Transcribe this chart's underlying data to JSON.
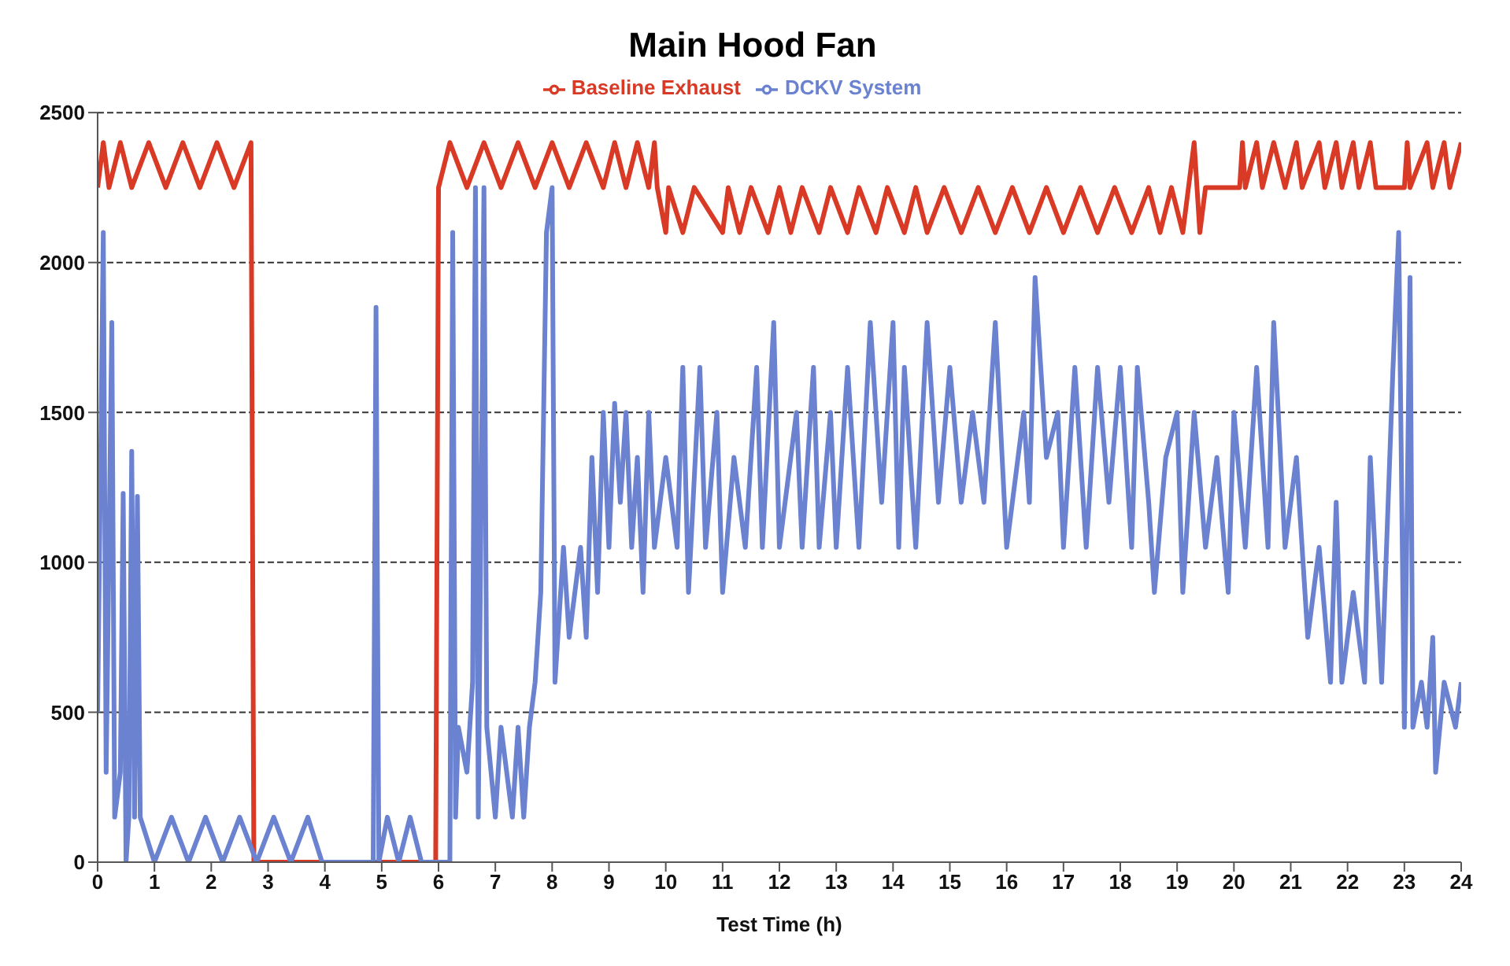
{
  "chart_data": {
    "type": "line",
    "title": "Main Hood Fan",
    "xlabel": "Test Time (h)",
    "xlim": [
      0,
      24
    ],
    "xticks": [
      0,
      1,
      2,
      3,
      4,
      5,
      6,
      7,
      8,
      9,
      10,
      11,
      12,
      13,
      14,
      15,
      16,
      17,
      18,
      19,
      20,
      21,
      22,
      23,
      24
    ],
    "ylim": [
      0,
      2500
    ],
    "yticks": [
      0,
      500,
      1000,
      1500,
      2000,
      2500
    ],
    "grid": "y",
    "legend": "top",
    "marker": "none",
    "line_style": "solid",
    "series": [
      {
        "name": "Baseline Exhaust",
        "color": "#d93a26",
        "x": [
          0,
          0.1,
          0.2,
          0.4,
          0.6,
          0.9,
          1.2,
          1.5,
          1.8,
          2.1,
          2.4,
          2.7,
          2.75,
          5.95,
          6.0,
          6.2,
          6.5,
          6.8,
          7.1,
          7.4,
          7.7,
          8.0,
          8.3,
          8.6,
          8.9,
          9.1,
          9.3,
          9.5,
          9.7,
          9.8,
          9.85,
          10.0,
          10.05,
          10.3,
          10.5,
          11.0,
          11.1,
          11.3,
          11.5,
          11.8,
          12.0,
          12.2,
          12.4,
          12.7,
          12.9,
          13.2,
          13.4,
          13.7,
          13.9,
          14.2,
          14.4,
          14.6,
          14.9,
          15.2,
          15.5,
          15.8,
          16.1,
          16.4,
          16.7,
          17.0,
          17.3,
          17.6,
          17.9,
          18.2,
          18.5,
          18.7,
          18.9,
          19.1,
          19.2,
          19.3,
          19.35,
          19.4,
          19.5,
          20.1,
          20.15,
          20.2,
          20.4,
          20.5,
          20.7,
          20.9,
          21.1,
          21.2,
          21.5,
          21.6,
          21.8,
          21.9,
          22.1,
          22.2,
          22.4,
          22.5,
          23.0,
          23.05,
          23.1,
          23.4,
          23.5,
          23.7,
          23.8,
          24
        ],
        "values": [
          2250,
          2400,
          2250,
          2400,
          2250,
          2400,
          2250,
          2400,
          2250,
          2400,
          2250,
          2400,
          0,
          0,
          2250,
          2400,
          2250,
          2400,
          2250,
          2400,
          2250,
          2400,
          2250,
          2400,
          2250,
          2400,
          2250,
          2400,
          2250,
          2400,
          2250,
          2100,
          2250,
          2100,
          2250,
          2100,
          2250,
          2100,
          2250,
          2100,
          2250,
          2100,
          2250,
          2100,
          2250,
          2100,
          2250,
          2100,
          2250,
          2100,
          2250,
          2100,
          2250,
          2100,
          2250,
          2100,
          2250,
          2100,
          2250,
          2100,
          2250,
          2100,
          2250,
          2100,
          2250,
          2100,
          2250,
          2100,
          2250,
          2400,
          2250,
          2100,
          2250,
          2250,
          2400,
          2250,
          2400,
          2250,
          2400,
          2250,
          2400,
          2250,
          2400,
          2250,
          2400,
          2250,
          2400,
          2250,
          2400,
          2250,
          2250,
          2400,
          2250,
          2400,
          2250,
          2400,
          2250,
          2400
        ]
      },
      {
        "name": "DCKV System",
        "color": "#6a82d0",
        "x": [
          0,
          0.1,
          0.15,
          0.25,
          0.3,
          0.4,
          0.45,
          0.5,
          0.55,
          0.6,
          0.65,
          0.7,
          0.75,
          1.0,
          1.3,
          1.6,
          1.9,
          2.2,
          2.5,
          2.8,
          3.1,
          3.4,
          3.7,
          3.95,
          4.85,
          4.9,
          4.95,
          5.1,
          5.3,
          5.5,
          5.7,
          5.85,
          6.2,
          6.25,
          6.3,
          6.35,
          6.5,
          6.6,
          6.65,
          6.7,
          6.8,
          6.85,
          7.0,
          7.1,
          7.3,
          7.4,
          7.5,
          7.6,
          7.7,
          7.8,
          7.9,
          8.0,
          8.05,
          8.2,
          8.3,
          8.5,
          8.6,
          8.7,
          8.8,
          8.9,
          9.0,
          9.1,
          9.2,
          9.3,
          9.4,
          9.5,
          9.6,
          9.7,
          9.8,
          10.0,
          10.2,
          10.3,
          10.4,
          10.6,
          10.7,
          10.9,
          11.0,
          11.2,
          11.4,
          11.6,
          11.7,
          11.9,
          12.0,
          12.3,
          12.4,
          12.6,
          12.7,
          12.9,
          13.0,
          13.2,
          13.4,
          13.6,
          13.8,
          14.0,
          14.1,
          14.2,
          14.4,
          14.6,
          14.8,
          15.0,
          15.2,
          15.4,
          15.6,
          15.8,
          16.0,
          16.3,
          16.4,
          16.5,
          16.7,
          16.9,
          17.0,
          17.2,
          17.4,
          17.6,
          17.8,
          18.0,
          18.2,
          18.3,
          18.5,
          18.6,
          18.8,
          19.0,
          19.1,
          19.3,
          19.5,
          19.7,
          19.9,
          20.0,
          20.2,
          20.4,
          20.6,
          20.7,
          20.9,
          21.1,
          21.3,
          21.5,
          21.7,
          21.8,
          21.9,
          22.1,
          22.3,
          22.4,
          22.6,
          22.8,
          22.9,
          23.0,
          23.1,
          23.15,
          23.3,
          23.4,
          23.5,
          23.55,
          23.7,
          23.9,
          24
        ],
        "values": [
          500,
          2100,
          300,
          1800,
          150,
          300,
          1230,
          0,
          150,
          1370,
          150,
          1220,
          150,
          0,
          150,
          0,
          150,
          0,
          150,
          0,
          150,
          0,
          150,
          0,
          0,
          1850,
          0,
          150,
          0,
          150,
          0,
          0,
          0,
          2100,
          150,
          450,
          300,
          600,
          2250,
          150,
          2250,
          450,
          150,
          450,
          150,
          450,
          150,
          450,
          600,
          900,
          2100,
          2250,
          600,
          1050,
          750,
          1050,
          750,
          1350,
          900,
          1500,
          1050,
          1530,
          1200,
          1500,
          1050,
          1350,
          900,
          1500,
          1050,
          1350,
          1050,
          1650,
          900,
          1650,
          1050,
          1500,
          900,
          1350,
          1050,
          1650,
          1050,
          1800,
          1050,
          1500,
          1050,
          1650,
          1050,
          1500,
          1050,
          1650,
          1050,
          1800,
          1200,
          1800,
          1050,
          1650,
          1050,
          1800,
          1200,
          1650,
          1200,
          1500,
          1200,
          1800,
          1050,
          1500,
          1200,
          1950,
          1350,
          1500,
          1050,
          1650,
          1050,
          1650,
          1200,
          1650,
          1050,
          1650,
          1200,
          900,
          1350,
          1500,
          900,
          1500,
          1050,
          1350,
          900,
          1500,
          1050,
          1650,
          1050,
          1800,
          1050,
          1350,
          750,
          1050,
          600,
          1200,
          600,
          900,
          600,
          1350,
          600,
          1650,
          2100,
          450,
          1950,
          450,
          600,
          450,
          750,
          300,
          600,
          450,
          600
        ]
      }
    ]
  }
}
